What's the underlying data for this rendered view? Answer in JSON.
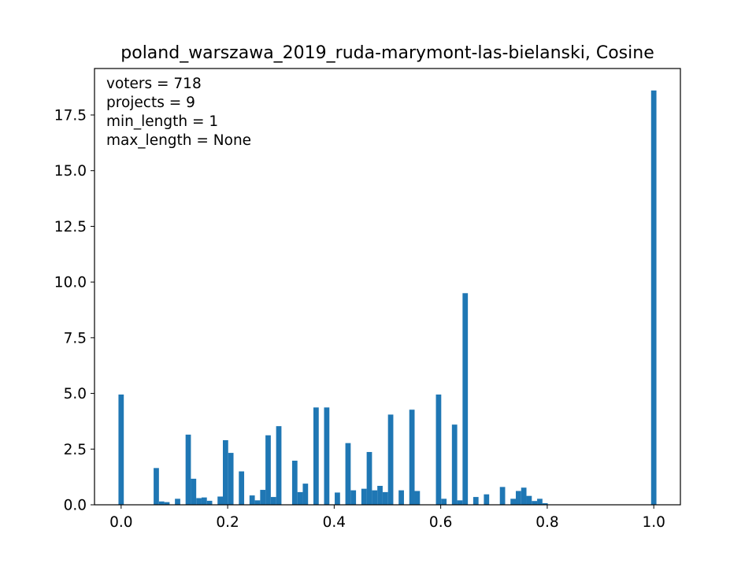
{
  "chart_data": {
    "type": "bar",
    "title": "poland_warszawa_2019_ruda-marymont-las-bielanski, Cosine",
    "xlabel": "",
    "ylabel": "",
    "xlim": [
      -0.05,
      1.05
    ],
    "ylim": [
      0,
      18.6
    ],
    "grid": false,
    "bin_width": 0.01,
    "x_ticks": [
      {
        "value": 0.0,
        "label": "0.0"
      },
      {
        "value": 0.2,
        "label": "0.2"
      },
      {
        "value": 0.4,
        "label": "0.4"
      },
      {
        "value": 0.6,
        "label": "0.6"
      },
      {
        "value": 0.8,
        "label": "0.8"
      },
      {
        "value": 1.0,
        "label": "1.0"
      }
    ],
    "y_ticks": [
      {
        "value": 0.0,
        "label": "0.0"
      },
      {
        "value": 2.5,
        "label": "2.5"
      },
      {
        "value": 5.0,
        "label": "5.0"
      },
      {
        "value": 7.5,
        "label": "7.5"
      },
      {
        "value": 10.0,
        "label": "10.0"
      },
      {
        "value": 12.5,
        "label": "12.5"
      },
      {
        "value": 15.0,
        "label": "15.0"
      },
      {
        "value": 17.5,
        "label": "17.5"
      }
    ],
    "annotations": [
      "voters = 718",
      "projects = 9",
      "min_length = 1",
      "max_length = None"
    ],
    "color": "#1f77b4",
    "x": [
      0.0,
      0.066,
      0.076,
      0.086,
      0.106,
      0.126,
      0.136,
      0.146,
      0.156,
      0.166,
      0.186,
      0.196,
      0.206,
      0.226,
      0.246,
      0.256,
      0.266,
      0.276,
      0.286,
      0.296,
      0.326,
      0.336,
      0.346,
      0.366,
      0.386,
      0.406,
      0.426,
      0.436,
      0.456,
      0.466,
      0.476,
      0.486,
      0.496,
      0.506,
      0.526,
      0.546,
      0.556,
      0.596,
      0.606,
      0.626,
      0.636,
      0.646,
      0.666,
      0.686,
      0.716,
      0.736,
      0.746,
      0.756,
      0.766,
      0.776,
      0.786,
      0.796,
      1.0
    ],
    "values": [
      4.95,
      1.65,
      0.15,
      0.12,
      0.27,
      3.15,
      1.17,
      0.3,
      0.33,
      0.18,
      0.37,
      2.9,
      2.33,
      1.5,
      0.42,
      0.2,
      0.67,
      3.12,
      0.35,
      3.53,
      1.98,
      0.57,
      0.95,
      4.37,
      4.37,
      0.55,
      2.77,
      0.65,
      0.72,
      2.37,
      0.65,
      0.85,
      0.57,
      4.05,
      0.65,
      4.27,
      0.62,
      4.95,
      0.27,
      3.6,
      0.2,
      9.5,
      0.35,
      0.47,
      0.8,
      0.27,
      0.62,
      0.77,
      0.4,
      0.17,
      0.27,
      0.07,
      18.6
    ]
  }
}
